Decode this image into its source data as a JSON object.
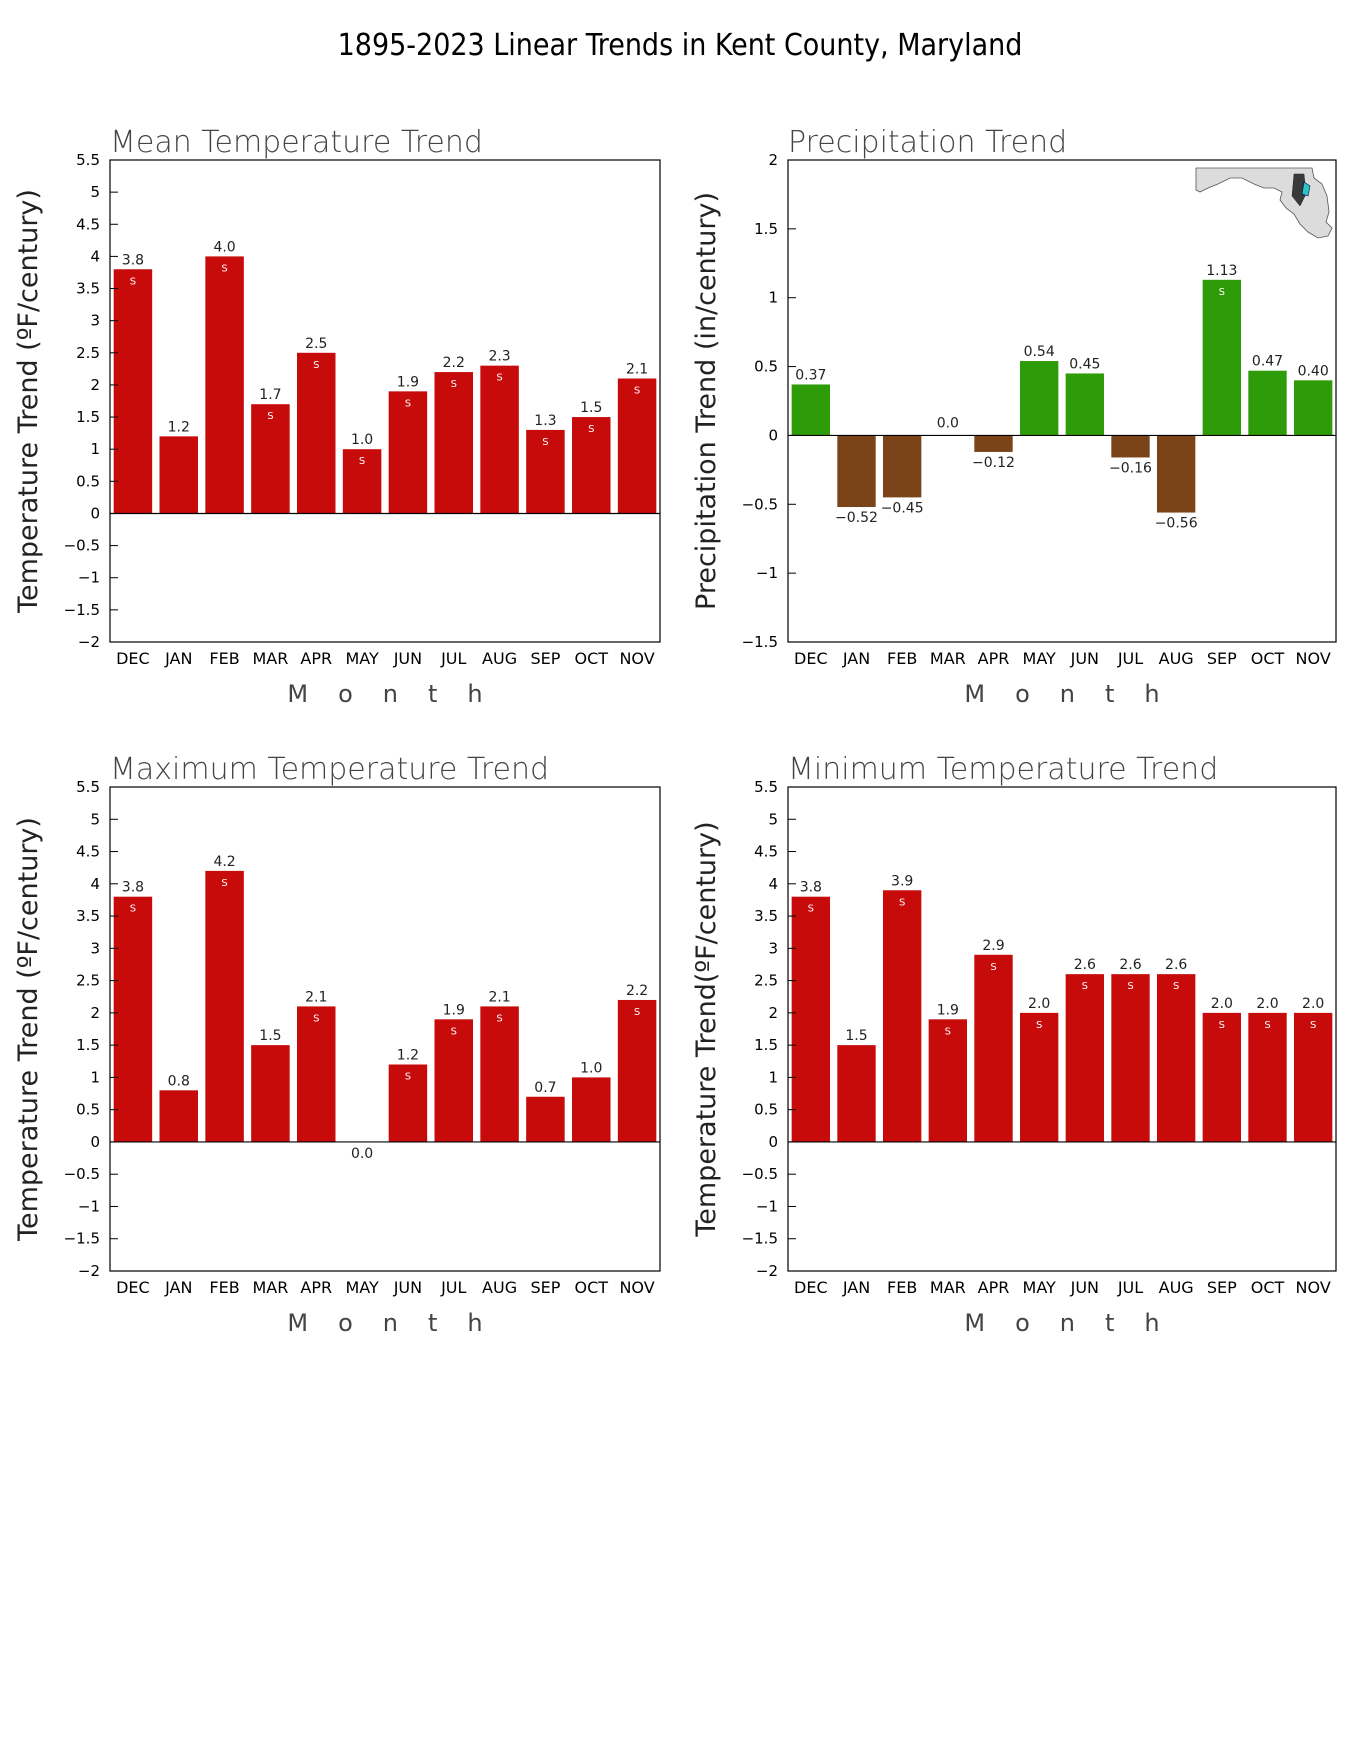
{
  "title": "1895-2023 Linear Trends in Kent County, Maryland",
  "colors": {
    "temperature_bar": "#c70b0b",
    "precip_positive": "#2e9b08",
    "precip_negative": "#7a4418",
    "map_fill": "#dcdcdc",
    "map_highlight": "#2bc4c4"
  },
  "map_inset": {
    "icon": "maryland-state-map-icon"
  },
  "chart_data": [
    {
      "type": "bar",
      "title": "Mean Temperature Trend",
      "xlabel": "Month",
      "ylabel": "Temperature Trend (ºF/century)",
      "ylim": [
        -2,
        5.5
      ],
      "yticks": [
        -2,
        -1.5,
        -1,
        -0.5,
        0,
        0.5,
        1,
        1.5,
        2,
        2.5,
        3,
        3.5,
        4,
        4.5,
        5,
        5.5
      ],
      "ytick_labels": [
        "−2",
        "−1.5",
        "−1",
        "−0.5",
        "0",
        "0.5",
        "1",
        "1.5",
        "2",
        "2.5",
        "3",
        "3.5",
        "4",
        "4.5",
        "5",
        "5.5"
      ],
      "categories": [
        "DEC",
        "JAN",
        "FEB",
        "MAR",
        "APR",
        "MAY",
        "JUN",
        "JUL",
        "AUG",
        "SEP",
        "OCT",
        "NOV"
      ],
      "values": [
        3.8,
        1.2,
        4.0,
        1.7,
        2.5,
        1.0,
        1.9,
        2.2,
        2.3,
        1.3,
        1.5,
        2.1
      ],
      "value_labels": [
        "3.8",
        "1.2",
        "4.0",
        "1.7",
        "2.5",
        "1.0",
        "1.9",
        "2.2",
        "2.3",
        "1.3",
        "1.5",
        "2.1"
      ],
      "significance": [
        "S",
        "",
        "S",
        "S",
        "S",
        "S",
        "S",
        "S",
        "S",
        "S",
        "S",
        "S"
      ],
      "grid": false
    },
    {
      "type": "bar",
      "title": "Precipitation Trend",
      "xlabel": "Month",
      "ylabel": "Precipitation Trend (in/century)",
      "ylim": [
        -1.5,
        2
      ],
      "yticks": [
        -1.5,
        -1,
        -0.5,
        0,
        0.5,
        1,
        1.5,
        2
      ],
      "ytick_labels": [
        "−1.5",
        "−1",
        "−0.5",
        "0",
        "0.5",
        "1",
        "1.5",
        "2"
      ],
      "categories": [
        "DEC",
        "JAN",
        "FEB",
        "MAR",
        "APR",
        "MAY",
        "JUN",
        "JUL",
        "AUG",
        "SEP",
        "OCT",
        "NOV"
      ],
      "values": [
        0.37,
        -0.52,
        -0.45,
        0.0,
        -0.12,
        0.54,
        0.45,
        -0.16,
        -0.56,
        1.13,
        0.47,
        0.4
      ],
      "value_labels": [
        "0.37",
        "−0.52",
        "−0.45",
        "0.0",
        "−0.12",
        "0.54",
        "0.45",
        "−0.16",
        "−0.56",
        "1.13",
        "0.47",
        "0.40"
      ],
      "significance": [
        "",
        "",
        "",
        "",
        "",
        "",
        "",
        "",
        "",
        "S",
        "",
        ""
      ],
      "grid": false
    },
    {
      "type": "bar",
      "title": "Maximum Temperature Trend",
      "xlabel": "Month",
      "ylabel": "Temperature Trend (ºF/century)",
      "ylim": [
        -2,
        5.5
      ],
      "yticks": [
        -2,
        -1.5,
        -1,
        -0.5,
        0,
        0.5,
        1,
        1.5,
        2,
        2.5,
        3,
        3.5,
        4,
        4.5,
        5,
        5.5
      ],
      "ytick_labels": [
        "−2",
        "−1.5",
        "−1",
        "−0.5",
        "0",
        "0.5",
        "1",
        "1.5",
        "2",
        "2.5",
        "3",
        "3.5",
        "4",
        "4.5",
        "5",
        "5.5"
      ],
      "categories": [
        "DEC",
        "JAN",
        "FEB",
        "MAR",
        "APR",
        "MAY",
        "JUN",
        "JUL",
        "AUG",
        "SEP",
        "OCT",
        "NOV"
      ],
      "values": [
        3.8,
        0.8,
        4.2,
        1.5,
        2.1,
        0.0,
        1.2,
        1.9,
        2.1,
        0.7,
        1.0,
        2.2
      ],
      "value_labels": [
        "3.8",
        "0.8",
        "4.2",
        "1.5",
        "2.1",
        "0.0",
        "1.2",
        "1.9",
        "2.1",
        "0.7",
        "1.0",
        "2.2"
      ],
      "significance": [
        "S",
        "",
        "S",
        "",
        "S",
        "",
        "S",
        "S",
        "S",
        "",
        "",
        "S"
      ],
      "grid": false
    },
    {
      "type": "bar",
      "title": "Minimum Temperature Trend",
      "xlabel": "Month",
      "ylabel": "Temperature Trend(ºF/century)",
      "ylim": [
        -2,
        5.5
      ],
      "yticks": [
        -2,
        -1.5,
        -1,
        -0.5,
        0,
        0.5,
        1,
        1.5,
        2,
        2.5,
        3,
        3.5,
        4,
        4.5,
        5,
        5.5
      ],
      "ytick_labels": [
        "−2",
        "−1.5",
        "−1",
        "−0.5",
        "0",
        "0.5",
        "1",
        "1.5",
        "2",
        "2.5",
        "3",
        "3.5",
        "4",
        "4.5",
        "5",
        "5.5"
      ],
      "categories": [
        "DEC",
        "JAN",
        "FEB",
        "MAR",
        "APR",
        "MAY",
        "JUN",
        "JUL",
        "AUG",
        "SEP",
        "OCT",
        "NOV"
      ],
      "values": [
        3.8,
        1.5,
        3.9,
        1.9,
        2.9,
        2.0,
        2.6,
        2.6,
        2.6,
        2.0,
        2.0,
        2.0
      ],
      "value_labels": [
        "3.8",
        "1.5",
        "3.9",
        "1.9",
        "2.9",
        "2.0",
        "2.6",
        "2.6",
        "2.6",
        "2.0",
        "2.0",
        "2.0"
      ],
      "significance": [
        "S",
        "",
        "S",
        "S",
        "S",
        "S",
        "S",
        "S",
        "S",
        "S",
        "S",
        "S"
      ],
      "grid": false
    }
  ]
}
